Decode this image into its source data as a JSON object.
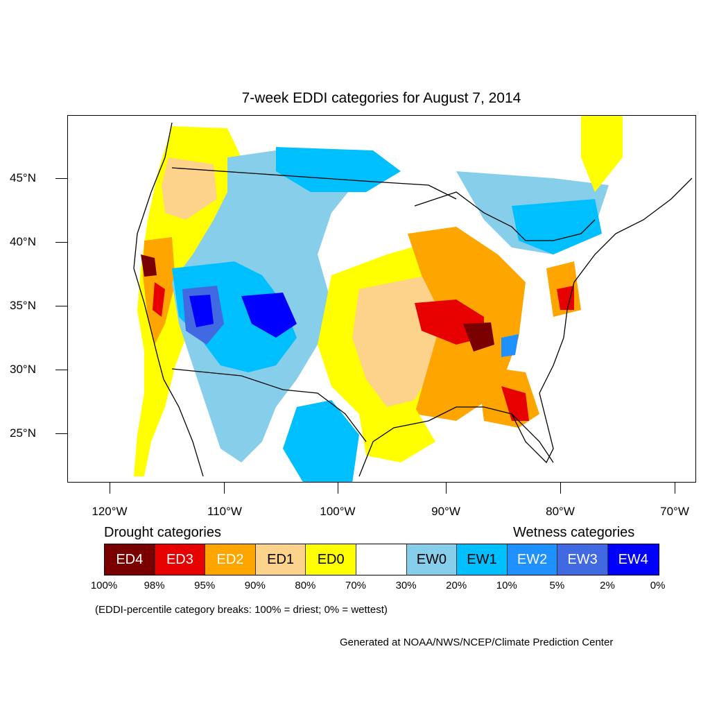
{
  "title": "7-week EDDI categories for August 7, 2014",
  "y_axis_labels": [
    "45°N",
    "40°N",
    "35°N",
    "30°N",
    "25°N"
  ],
  "x_axis_labels": [
    "120°W",
    "110°W",
    "100°W",
    "90°W",
    "80°W",
    "70°W"
  ],
  "legend": {
    "drought_heading": "Drought categories",
    "wetness_heading": "Wetness categories",
    "categories": [
      {
        "label": "ED4",
        "color": "#7a0000",
        "text_color": "#ffffff"
      },
      {
        "label": "ED3",
        "color": "#e60000",
        "text_color": "#ffffff"
      },
      {
        "label": "ED2",
        "color": "#ffa500",
        "text_color": "#ffffff"
      },
      {
        "label": "ED1",
        "color": "#fdd28a",
        "text_color": "#000000"
      },
      {
        "label": "ED0",
        "color": "#ffff00",
        "text_color": "#000000"
      },
      {
        "label": "",
        "color": "#ffffff",
        "text_color": "#000000"
      },
      {
        "label": "EW0",
        "color": "#87ceeb",
        "text_color": "#000000"
      },
      {
        "label": "EW1",
        "color": "#00bfff",
        "text_color": "#000000"
      },
      {
        "label": "EW2",
        "color": "#1e90ff",
        "text_color": "#ffffff"
      },
      {
        "label": "EW3",
        "color": "#4169e1",
        "text_color": "#ffffff"
      },
      {
        "label": "EW4",
        "color": "#0000ff",
        "text_color": "#ffffff"
      }
    ],
    "breaks": [
      "100%",
      "98%",
      "95%",
      "90%",
      "80%",
      "70%",
      "30%",
      "20%",
      "10%",
      "5%",
      "2%",
      "0%"
    ],
    "note": "(EDDI-percentile category breaks: 100% = driest; 0% = wettest)"
  },
  "credit": "Generated at NOAA/NWS/NCEP/Climate Prediction Center"
}
